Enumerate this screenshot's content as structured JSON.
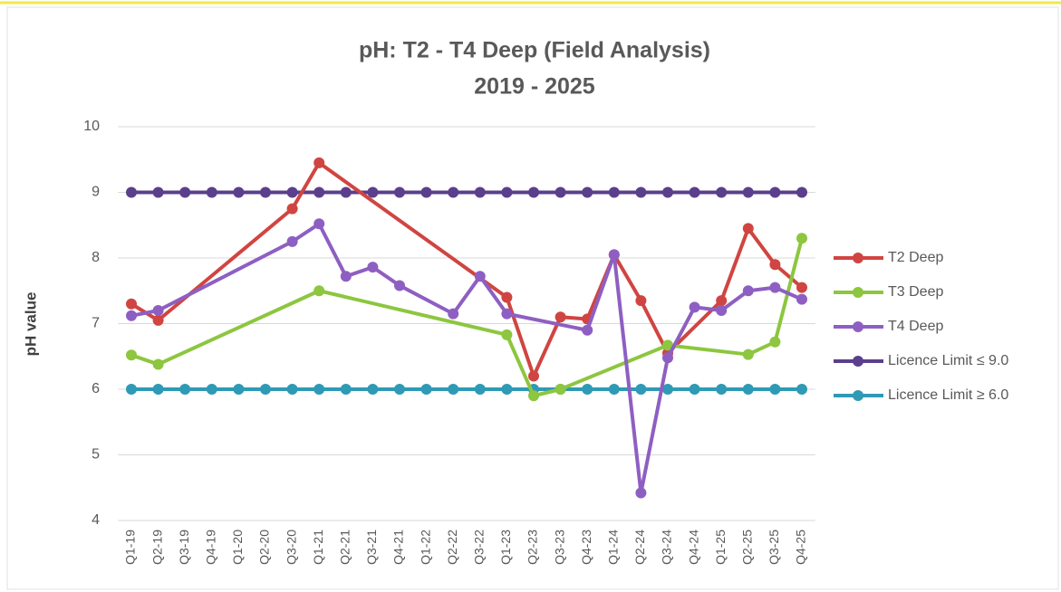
{
  "chart_data": {
    "type": "line",
    "title": "pH: T2 - T4 Deep (Field Analysis)",
    "subtitle": "2019 - 2025",
    "y_label": "pH value",
    "categories": [
      "Q1-19",
      "Q2-19",
      "Q3-19",
      "Q4-19",
      "Q1-20",
      "Q2-20",
      "Q3-20",
      "Q1-21",
      "Q2-21",
      "Q3-21",
      "Q4-21",
      "Q1-22",
      "Q2-22",
      "Q3-22",
      "Q1-23",
      "Q2-23",
      "Q3-23",
      "Q4-23",
      "Q1-24",
      "Q2-24",
      "Q3-24",
      "Q4-24",
      "Q1-25",
      "Q2-25",
      "Q3-25",
      "Q4-25"
    ],
    "series": [
      {
        "name": "T2 Deep",
        "color": "#d04541",
        "values": [
          7.3,
          7.05,
          null,
          null,
          null,
          null,
          8.75,
          9.45,
          null,
          null,
          null,
          null,
          null,
          null,
          7.4,
          6.2,
          7.1,
          7.07,
          8.05,
          7.35,
          6.55,
          null,
          7.35,
          8.45,
          7.9,
          7.55
        ]
      },
      {
        "name": "T3 Deep",
        "color": "#8dc63f",
        "values": [
          6.52,
          6.38,
          null,
          null,
          null,
          null,
          null,
          7.5,
          null,
          null,
          null,
          null,
          null,
          null,
          6.83,
          5.9,
          6.0,
          null,
          null,
          null,
          6.67,
          null,
          null,
          6.53,
          6.72,
          8.3
        ]
      },
      {
        "name": "T4 Deep",
        "color": "#8e5fc2",
        "values": [
          7.12,
          7.2,
          null,
          null,
          null,
          null,
          8.25,
          8.52,
          7.72,
          7.86,
          7.58,
          null,
          7.15,
          7.72,
          7.15,
          null,
          null,
          6.9,
          8.05,
          4.42,
          6.48,
          7.25,
          7.2,
          7.5,
          7.55,
          7.37
        ]
      },
      {
        "name": "Licence Limit ≤ 9.0",
        "color": "#5b3f8c",
        "values": [
          9,
          9,
          9,
          9,
          9,
          9,
          9,
          9,
          9,
          9,
          9,
          9,
          9,
          9,
          9,
          9,
          9,
          9,
          9,
          9,
          9,
          9,
          9,
          9,
          9,
          9
        ]
      },
      {
        "name": "Licence Limit ≥ 6.0",
        "color": "#2e9ab5",
        "values": [
          6,
          6,
          6,
          6,
          6,
          6,
          6,
          6,
          6,
          6,
          6,
          6,
          6,
          6,
          6,
          6,
          6,
          6,
          6,
          6,
          6,
          6,
          6,
          6,
          6,
          6
        ]
      }
    ],
    "ylim": [
      4,
      10
    ],
    "yticks": [
      4,
      5,
      6,
      7,
      8,
      9,
      10
    ],
    "grid": true,
    "legend": "right"
  }
}
